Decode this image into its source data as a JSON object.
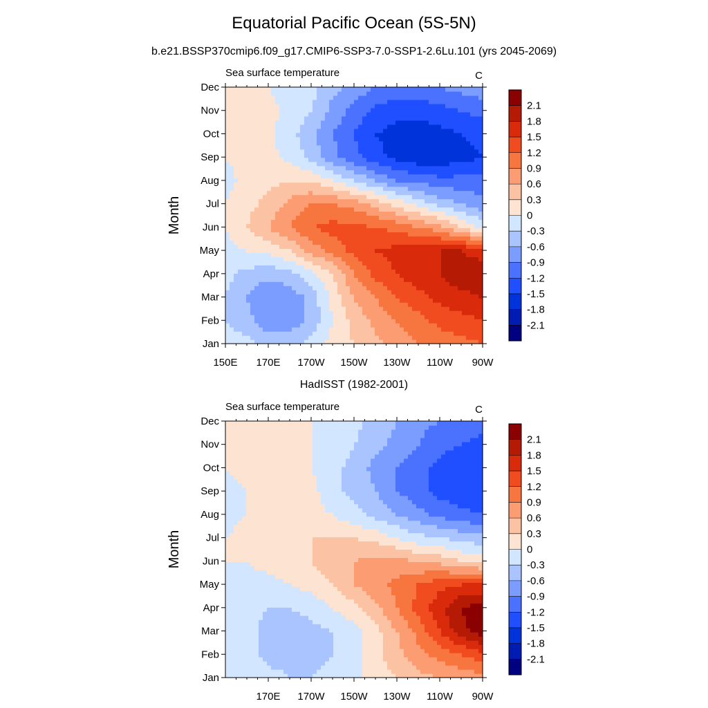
{
  "title": "Equatorial Pacific Ocean (5S-5N)",
  "subtitle": "b.e21.BSSP370cmip6.f09_g17.CMIP6-SSP3-7.0-SSP1-2.6Lu.101 (yrs 2045-2069)",
  "chart_data": [
    {
      "type": "heatmap",
      "panel_title": "",
      "left_label": "Sea surface temperature",
      "units": "C",
      "ylabel": "Month",
      "xlabel": "",
      "x_ticks": [
        "150E",
        "170E",
        "170W",
        "150W",
        "130W",
        "110W",
        "90W"
      ],
      "x_range": [
        150,
        270
      ],
      "x": [
        150,
        160,
        170,
        180,
        190,
        200,
        210,
        220,
        230,
        240,
        250,
        260,
        270
      ],
      "y_ticks": [
        "Jan",
        "Feb",
        "Mar",
        "Apr",
        "May",
        "Jun",
        "Jul",
        "Aug",
        "Sep",
        "Oct",
        "Nov",
        "Dec"
      ],
      "y": [
        "Jan",
        "Feb",
        "Mar",
        "Apr",
        "May",
        "Jun",
        "Jul",
        "Aug",
        "Sep",
        "Oct",
        "Nov",
        "Dec"
      ],
      "z": [
        [
          -0.1,
          -0.2,
          -0.4,
          -0.4,
          -0.2,
          0.1,
          0.3,
          0.5,
          0.7,
          0.9,
          1.0,
          1.1,
          1.2
        ],
        [
          -0.3,
          -0.5,
          -0.8,
          -0.8,
          -0.5,
          0.0,
          0.4,
          0.7,
          0.9,
          1.1,
          1.3,
          1.4,
          1.5
        ],
        [
          -0.3,
          -0.6,
          -0.9,
          -0.8,
          -0.5,
          0.1,
          0.6,
          0.9,
          1.2,
          1.4,
          1.6,
          1.7,
          1.8
        ],
        [
          -0.2,
          -0.4,
          -0.5,
          -0.4,
          -0.1,
          0.3,
          0.9,
          1.3,
          1.5,
          1.7,
          1.8,
          2.0,
          2.1
        ],
        [
          -0.1,
          0.0,
          0.1,
          0.3,
          0.7,
          1.0,
          1.3,
          1.5,
          1.6,
          1.8,
          1.8,
          1.8,
          1.6
        ],
        [
          0.0,
          0.3,
          0.6,
          0.9,
          1.2,
          1.3,
          1.3,
          1.2,
          1.1,
          0.9,
          0.7,
          0.3,
          -0.1
        ],
        [
          0.0,
          0.2,
          0.4,
          0.7,
          0.9,
          0.9,
          0.8,
          0.5,
          0.2,
          -0.1,
          -0.4,
          -0.6,
          -0.8
        ],
        [
          -0.1,
          0.1,
          0.2,
          0.3,
          0.3,
          0.0,
          -0.3,
          -0.6,
          -0.9,
          -1.0,
          -1.1,
          -1.1,
          -1.1
        ],
        [
          0.0,
          0.1,
          0.1,
          -0.1,
          -0.4,
          -0.8,
          -1.1,
          -1.4,
          -1.6,
          -1.7,
          -1.7,
          -1.6,
          -1.5
        ],
        [
          0.1,
          0.1,
          0.1,
          -0.2,
          -0.5,
          -0.9,
          -1.2,
          -1.5,
          -1.6,
          -1.7,
          -1.6,
          -1.5,
          -1.4
        ],
        [
          0.1,
          0.1,
          0.1,
          -0.1,
          -0.3,
          -0.7,
          -1.0,
          -1.3,
          -1.4,
          -1.4,
          -1.3,
          -1.2,
          -1.1
        ],
        [
          0.1,
          0.1,
          0.0,
          -0.1,
          -0.2,
          -0.5,
          -0.7,
          -0.9,
          -1.0,
          -1.0,
          -0.9,
          -0.8,
          -0.7
        ]
      ],
      "legend": {
        "labels": [
          "2.1",
          "1.8",
          "1.5",
          "1.2",
          "0.9",
          "0.6",
          "0.3",
          "0",
          "-0.3",
          "-0.6",
          "-0.9",
          "-1.2",
          "-1.5",
          "-1.8",
          "-2.1"
        ],
        "levels": [
          -2.1,
          -1.8,
          -1.5,
          -1.2,
          -0.9,
          -0.6,
          -0.3,
          0,
          0.3,
          0.6,
          0.9,
          1.2,
          1.5,
          1.8,
          2.1
        ],
        "colors": [
          "#000080",
          "#001cb3",
          "#0033d9",
          "#1f4fff",
          "#4a72ff",
          "#7a9dff",
          "#a9c4ff",
          "#d3e6ff",
          "#fde3d1",
          "#fcc2a4",
          "#fb9c73",
          "#f7753f",
          "#f04c1f",
          "#d92b0c",
          "#b51b04",
          "#8b0000"
        ]
      }
    },
    {
      "type": "heatmap",
      "panel_title": "HadISST (1982-2001)",
      "left_label": "Sea surface temperature",
      "units": "C",
      "ylabel": "Month",
      "xlabel": "",
      "x_ticks": [
        "170E",
        "170W",
        "150W",
        "130W",
        "110W",
        "90W"
      ],
      "x_range": [
        150,
        270
      ],
      "x": [
        150,
        160,
        170,
        180,
        190,
        200,
        210,
        220,
        230,
        240,
        250,
        260,
        270
      ],
      "y_ticks": [
        "Jan",
        "Feb",
        "Mar",
        "Apr",
        "May",
        "Jun",
        "Jul",
        "Aug",
        "Sep",
        "Oct",
        "Nov",
        "Dec"
      ],
      "y": [
        "Jan",
        "Feb",
        "Mar",
        "Apr",
        "May",
        "Jun",
        "Jul",
        "Aug",
        "Sep",
        "Oct",
        "Nov",
        "Dec"
      ],
      "z": [
        [
          0.0,
          -0.1,
          -0.2,
          -0.3,
          -0.3,
          -0.2,
          -0.1,
          0.1,
          0.3,
          0.5,
          0.6,
          0.7,
          0.8
        ],
        [
          -0.1,
          -0.2,
          -0.4,
          -0.4,
          -0.4,
          -0.3,
          -0.1,
          0.2,
          0.5,
          0.8,
          1.0,
          1.2,
          1.4
        ],
        [
          -0.1,
          -0.2,
          -0.4,
          -0.5,
          -0.4,
          -0.3,
          -0.1,
          0.2,
          0.6,
          1.0,
          1.5,
          2.0,
          2.3
        ],
        [
          -0.1,
          -0.2,
          -0.3,
          -0.3,
          -0.2,
          0.0,
          0.2,
          0.5,
          0.9,
          1.3,
          1.7,
          2.1,
          2.3
        ],
        [
          -0.1,
          -0.1,
          -0.1,
          0.0,
          0.1,
          0.3,
          0.6,
          0.8,
          1.0,
          1.2,
          1.4,
          1.5,
          1.5
        ],
        [
          0.0,
          0.0,
          0.1,
          0.2,
          0.3,
          0.5,
          0.6,
          0.7,
          0.7,
          0.6,
          0.5,
          0.3,
          0.2
        ],
        [
          0.0,
          0.1,
          0.1,
          0.2,
          0.3,
          0.3,
          0.3,
          0.2,
          0.0,
          -0.2,
          -0.3,
          -0.4,
          -0.5
        ],
        [
          -0.1,
          0.0,
          0.1,
          0.1,
          0.1,
          0.0,
          -0.2,
          -0.4,
          -0.6,
          -0.8,
          -1.0,
          -1.1,
          -1.2
        ],
        [
          -0.1,
          0.0,
          0.2,
          0.3,
          0.1,
          -0.2,
          -0.4,
          -0.6,
          -0.9,
          -1.1,
          -1.3,
          -1.4,
          -1.5
        ],
        [
          0.0,
          0.1,
          0.1,
          0.1,
          0.0,
          -0.2,
          -0.4,
          -0.7,
          -0.9,
          -1.1,
          -1.3,
          -1.4,
          -1.4
        ],
        [
          0.0,
          0.1,
          0.1,
          0.1,
          0.0,
          -0.1,
          -0.3,
          -0.5,
          -0.7,
          -0.9,
          -1.1,
          -1.2,
          -1.3
        ],
        [
          0.1,
          0.1,
          0.1,
          0.1,
          0.0,
          -0.1,
          -0.2,
          -0.4,
          -0.6,
          -0.8,
          -0.9,
          -1.0,
          -1.1
        ]
      ],
      "legend": {
        "labels": [
          "2.1",
          "1.8",
          "1.5",
          "1.2",
          "0.9",
          "0.6",
          "0.3",
          "0",
          "-0.3",
          "-0.6",
          "-0.9",
          "-1.2",
          "-1.5",
          "-1.8",
          "-2.1"
        ],
        "levels": [
          -2.1,
          -1.8,
          -1.5,
          -1.2,
          -0.9,
          -0.6,
          -0.3,
          0,
          0.3,
          0.6,
          0.9,
          1.2,
          1.5,
          1.8,
          2.1
        ],
        "colors": [
          "#000080",
          "#001cb3",
          "#0033d9",
          "#1f4fff",
          "#4a72ff",
          "#7a9dff",
          "#a9c4ff",
          "#d3e6ff",
          "#fde3d1",
          "#fcc2a4",
          "#fb9c73",
          "#f7753f",
          "#f04c1f",
          "#d92b0c",
          "#b51b04",
          "#8b0000"
        ]
      }
    }
  ]
}
